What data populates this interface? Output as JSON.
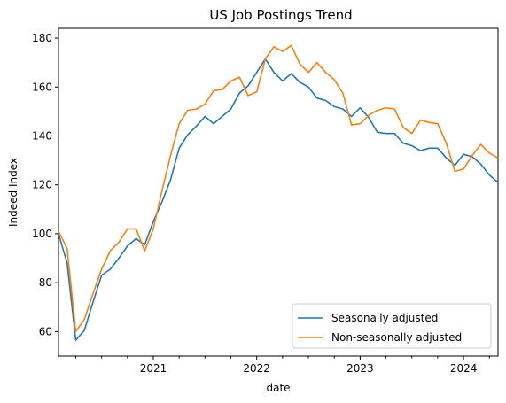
{
  "chart_data": {
    "type": "line",
    "title": "US Job Postings Trend",
    "xlabel": "date",
    "ylabel": "Indeed Index",
    "x_start": "2020-02",
    "x_end": "2024-05",
    "xlim": [
      "2020-02",
      "2024-05"
    ],
    "ylim": [
      50,
      184
    ],
    "x_major_ticks": [
      {
        "label": "2021",
        "date": "2021-01"
      },
      {
        "label": "2022",
        "date": "2022-01"
      },
      {
        "label": "2023",
        "date": "2023-01"
      },
      {
        "label": "2024",
        "date": "2024-01"
      }
    ],
    "y_ticks": [
      60,
      80,
      100,
      120,
      140,
      160,
      180
    ],
    "grid": false,
    "legend_position": "lower-right",
    "series": [
      {
        "name": "Seasonally adjusted",
        "color": "#1f77b4",
        "values": [
          100,
          88,
          56.5,
          60.5,
          72,
          83,
          85.5,
          90,
          95,
          98,
          95.5,
          105,
          113,
          122,
          135,
          140.5,
          144,
          148,
          145,
          148,
          151,
          157.5,
          160.5,
          166,
          171.5,
          166,
          162.5,
          165.5,
          162,
          160,
          155.5,
          154.5,
          152,
          151,
          148,
          151.5,
          147.5,
          141.5,
          141,
          141,
          137,
          136,
          134,
          135,
          135,
          131,
          128,
          132.5,
          131.5,
          128.5,
          124,
          121
        ]
      },
      {
        "name": "Non-seasonally adjusted",
        "color": "#ff7f0e",
        "values": [
          101,
          94,
          60,
          65,
          75.5,
          85.5,
          93,
          96.5,
          102,
          102,
          93,
          102,
          117.5,
          132,
          145,
          150.5,
          151,
          153,
          158.5,
          159,
          162.5,
          164,
          156.5,
          158,
          171.5,
          176.5,
          174.5,
          177,
          169.5,
          166,
          170,
          166,
          163,
          157.5,
          144.5,
          145,
          148.5,
          150.5,
          151.5,
          151,
          143.5,
          141,
          146.5,
          145.5,
          145,
          137,
          125.5,
          126.5,
          132,
          136.5,
          133,
          131
        ]
      }
    ]
  }
}
